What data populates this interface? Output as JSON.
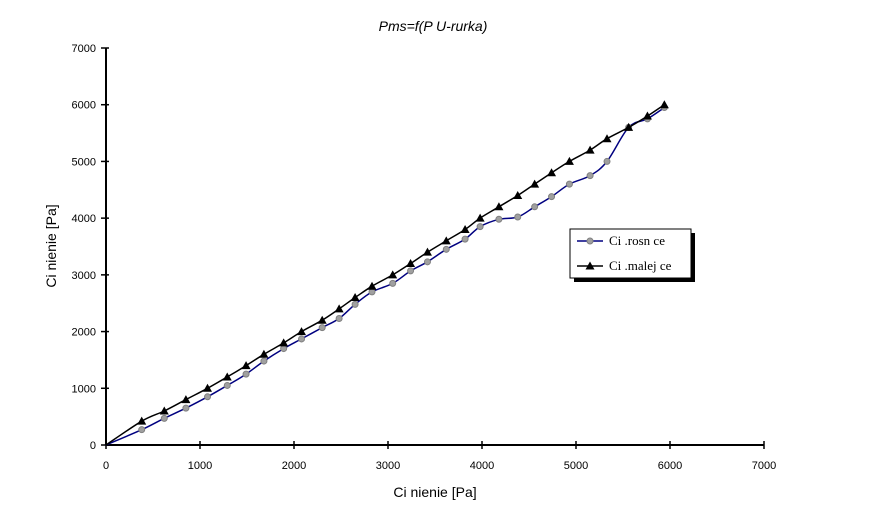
{
  "chart_data": {
    "type": "line",
    "title": "Pms=f(P U-rurka)",
    "xlabel": "Ci  nienie [Pa]",
    "ylabel": "Ci nienie [Pa]",
    "xlim": [
      0,
      7000
    ],
    "ylim": [
      0,
      7000
    ],
    "x_ticks": [
      "0",
      "1000",
      "2000",
      "3000",
      "4000",
      "5000",
      "6000",
      "7000"
    ],
    "y_ticks": [
      "0",
      "1000",
      "2000",
      "3000",
      "4000",
      "5000",
      "6000",
      "7000"
    ],
    "grid": false,
    "legend_position": "right",
    "series": [
      {
        "name": "Ci .rosn ce",
        "color": "#000080",
        "marker": "circle",
        "marker_color": "#a0a0a0",
        "points": [
          [
            0,
            0
          ],
          [
            380,
            270
          ],
          [
            620,
            470
          ],
          [
            850,
            650
          ],
          [
            1080,
            850
          ],
          [
            1290,
            1050
          ],
          [
            1490,
            1250
          ],
          [
            1680,
            1480
          ],
          [
            1890,
            1700
          ],
          [
            2080,
            1870
          ],
          [
            2300,
            2070
          ],
          [
            2480,
            2230
          ],
          [
            2650,
            2480
          ],
          [
            2830,
            2700
          ],
          [
            3050,
            2850
          ],
          [
            3240,
            3070
          ],
          [
            3420,
            3230
          ],
          [
            3620,
            3450
          ],
          [
            3820,
            3630
          ],
          [
            3980,
            3850
          ],
          [
            4180,
            3980
          ],
          [
            4380,
            4020
          ],
          [
            4560,
            4200
          ],
          [
            4740,
            4380
          ],
          [
            4930,
            4600
          ],
          [
            5150,
            4750
          ],
          [
            5330,
            5000
          ],
          [
            5560,
            5600
          ],
          [
            5760,
            5750
          ],
          [
            5940,
            5950
          ]
        ]
      },
      {
        "name": "Ci .malej ce",
        "color": "#000000",
        "marker": "triangle",
        "marker_color": "#000000",
        "points": [
          [
            0,
            0
          ],
          [
            380,
            420
          ],
          [
            620,
            600
          ],
          [
            850,
            800
          ],
          [
            1080,
            1000
          ],
          [
            1290,
            1200
          ],
          [
            1490,
            1400
          ],
          [
            1680,
            1600
          ],
          [
            1890,
            1800
          ],
          [
            2080,
            2000
          ],
          [
            2300,
            2200
          ],
          [
            2480,
            2400
          ],
          [
            2650,
            2600
          ],
          [
            2830,
            2800
          ],
          [
            3050,
            3000
          ],
          [
            3240,
            3200
          ],
          [
            3420,
            3400
          ],
          [
            3620,
            3600
          ],
          [
            3820,
            3800
          ],
          [
            3980,
            4000
          ],
          [
            4180,
            4200
          ],
          [
            4380,
            4400
          ],
          [
            4560,
            4600
          ],
          [
            4740,
            4800
          ],
          [
            4930,
            5000
          ],
          [
            5150,
            5200
          ],
          [
            5330,
            5400
          ],
          [
            5560,
            5600
          ],
          [
            5760,
            5800
          ],
          [
            5940,
            6000
          ]
        ]
      }
    ]
  }
}
